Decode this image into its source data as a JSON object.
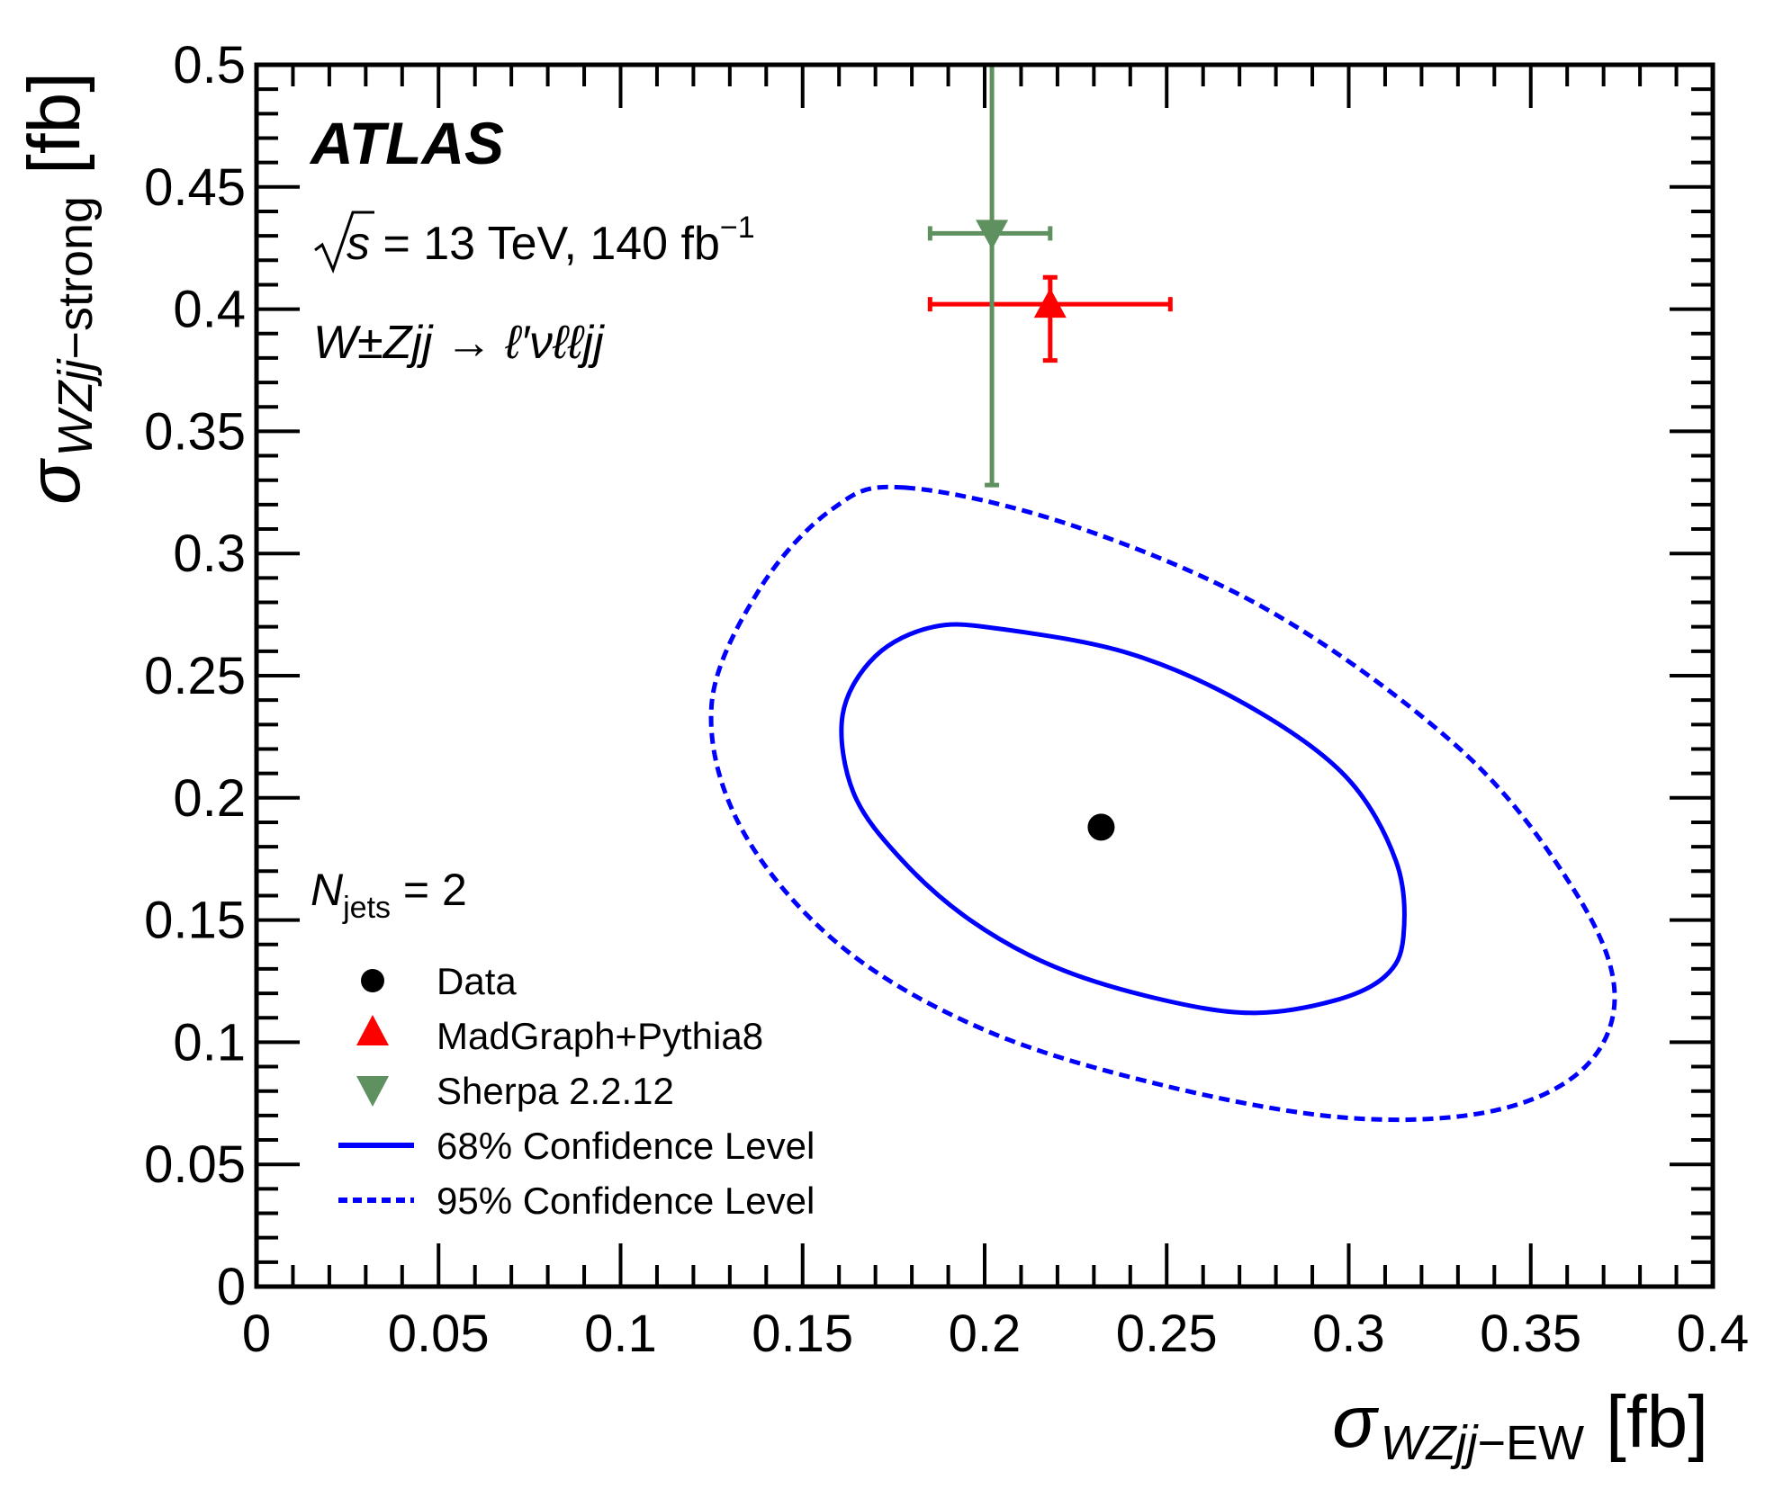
{
  "chart_data": {
    "type": "scatter",
    "xlim": [
      0,
      0.4
    ],
    "ylim": [
      0,
      0.5
    ],
    "x_ticks": [
      "0",
      "0.05",
      "0.1",
      "0.15",
      "0.2",
      "0.25",
      "0.3",
      "0.35",
      "0.4"
    ],
    "y_ticks": [
      "0",
      "0.05",
      "0.1",
      "0.15",
      "0.2",
      "0.25",
      "0.3",
      "0.35",
      "0.4",
      "0.45",
      "0.5"
    ],
    "xlabel": {
      "symbol": "σ",
      "subscript_italic": "WZjj",
      "subscript_rest": "−EW",
      "unit": "[fb]"
    },
    "ylabel": {
      "symbol": "σ",
      "subscript_italic": "WZjj",
      "subscript_rest": "−strong",
      "unit": "[fb]"
    },
    "annotations": {
      "experiment": "ATLAS",
      "energy_prefix": "s",
      "energy_text": " = 13 TeV, 140 fb",
      "energy_exp": "−1",
      "process": "W±Zjj → ℓ′νℓℓjj",
      "njets_label": "N",
      "njets_sub": "jets",
      "njets_value": " = 2"
    },
    "series": [
      {
        "name": "Data",
        "color": "#000000",
        "marker": "circle",
        "points": [
          {
            "x": 0.232,
            "y": 0.188
          }
        ]
      },
      {
        "name": "MadGraph+Pythia8",
        "color": "#ff0000",
        "marker": "triangle-up",
        "points": [
          {
            "x": 0.218,
            "y": 0.402,
            "xerr": [
              0.185,
              0.251
            ],
            "yerr": [
              0.379,
              0.413
            ]
          }
        ]
      },
      {
        "name": "Sherpa 2.2.12",
        "color": "#5f9060",
        "marker": "triangle-down",
        "points": [
          {
            "x": 0.202,
            "y": 0.431,
            "xerr": [
              0.185,
              0.218
            ],
            "yerr": [
              0.328,
              0.5
            ]
          }
        ]
      }
    ],
    "contours": [
      {
        "name": "68% Confidence Level",
        "color": "#0000ff",
        "style": "solid",
        "points": [
          [
            0.205,
            0.269
          ],
          [
            0.24,
            0.259
          ],
          [
            0.272,
            0.238
          ],
          [
            0.299,
            0.209
          ],
          [
            0.313,
            0.174
          ],
          [
            0.315,
            0.143
          ],
          [
            0.31,
            0.127
          ],
          [
            0.296,
            0.117
          ],
          [
            0.273,
            0.112
          ],
          [
            0.247,
            0.118
          ],
          [
            0.219,
            0.131
          ],
          [
            0.196,
            0.15
          ],
          [
            0.177,
            0.175
          ],
          [
            0.164,
            0.202
          ],
          [
            0.161,
            0.234
          ],
          [
            0.17,
            0.258
          ],
          [
            0.186,
            0.27
          ]
        ]
      },
      {
        "name": "95% Confidence Level",
        "color": "#0000ff",
        "style": "dashed",
        "points": [
          [
            0.178,
            0.327
          ],
          [
            0.225,
            0.311
          ],
          [
            0.28,
            0.275
          ],
          [
            0.332,
            0.218
          ],
          [
            0.362,
            0.162
          ],
          [
            0.373,
            0.121
          ],
          [
            0.365,
            0.09
          ],
          [
            0.34,
            0.072
          ],
          [
            0.3,
            0.069
          ],
          [
            0.25,
            0.082
          ],
          [
            0.2,
            0.105
          ],
          [
            0.16,
            0.14
          ],
          [
            0.133,
            0.188
          ],
          [
            0.125,
            0.238
          ],
          [
            0.138,
            0.285
          ],
          [
            0.158,
            0.318
          ]
        ]
      }
    ],
    "legend": {
      "placement": "bottom-left",
      "entries": [
        "Data",
        "MadGraph+Pythia8",
        "Sherpa 2.2.12",
        "68% Confidence Level",
        "95% Confidence Level"
      ]
    },
    "grid": false
  }
}
